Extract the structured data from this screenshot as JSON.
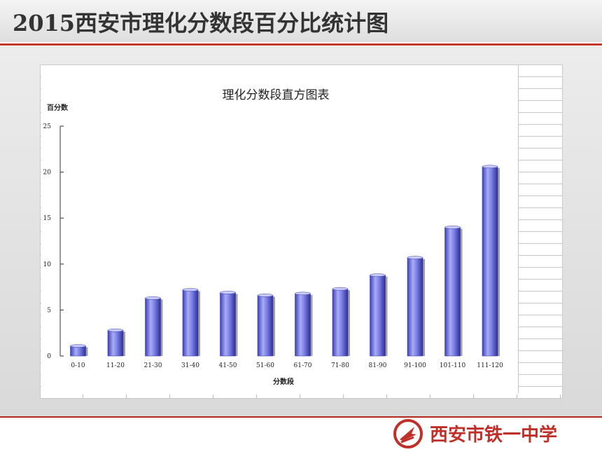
{
  "slide": {
    "title": "2015西安市理化分数段百分比统计图",
    "school_name": "西安市铁一中学"
  },
  "colors": {
    "bar_fill": "#7b7fe8",
    "bar_edge": "#3a3eb0",
    "title_rule": "#c0392b",
    "brand_red": "#c0302a"
  },
  "chart_data": {
    "type": "bar",
    "title": "理化分数段直方图表",
    "xlabel": "分数段",
    "ylabel": "百分数",
    "categories": [
      "0-10",
      "11-20",
      "21-30",
      "31-40",
      "41-50",
      "51-60",
      "61-70",
      "71-80",
      "81-90",
      "91-100",
      "101-110",
      "111-120"
    ],
    "values": [
      1.1,
      2.8,
      6.3,
      7.2,
      6.9,
      6.6,
      6.8,
      7.3,
      8.8,
      10.7,
      14.0,
      20.6
    ],
    "ylim": [
      0,
      25
    ],
    "yticks": [
      0,
      5,
      10,
      15,
      20,
      25
    ],
    "grid": false,
    "legend": "none"
  }
}
